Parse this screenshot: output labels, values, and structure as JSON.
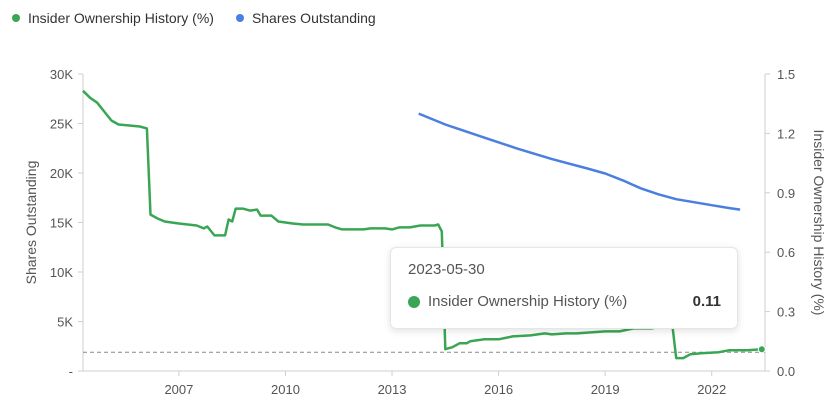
{
  "legend": [
    {
      "label": "Insider Ownership History (%)",
      "color": "#3aa655"
    },
    {
      "label": "Shares Outstanding",
      "color": "#4a7fe0"
    }
  ],
  "chart_data": {
    "type": "line",
    "left_axis": {
      "label": "Shares Outstanding",
      "ticks": [
        "-",
        "5K",
        "10K",
        "15K",
        "20K",
        "25K",
        "30K"
      ],
      "range": [
        0,
        30000
      ]
    },
    "right_axis": {
      "label": "Insider Ownership History (%)",
      "ticks": [
        "0.0",
        "0.3",
        "0.6",
        "0.9",
        "1.2",
        "1.5"
      ],
      "range": [
        0,
        1.5
      ]
    },
    "x_axis": {
      "ticks": [
        "2007",
        "2010",
        "2013",
        "2016",
        "2019",
        "2022"
      ],
      "range": [
        2004.3,
        2023.5
      ]
    },
    "reference_line": {
      "axis": "right",
      "value": 0.095
    },
    "series": [
      {
        "name": "Insider Ownership History (%)",
        "axis": "right",
        "color": "#3aa655",
        "points": [
          [
            2004.3,
            1.415
          ],
          [
            2004.5,
            1.38
          ],
          [
            2004.7,
            1.355
          ],
          [
            2004.9,
            1.31
          ],
          [
            2005.1,
            1.265
          ],
          [
            2005.3,
            1.245
          ],
          [
            2005.6,
            1.24
          ],
          [
            2005.9,
            1.235
          ],
          [
            2006.1,
            1.225
          ],
          [
            2006.2,
            0.79
          ],
          [
            2006.4,
            0.77
          ],
          [
            2006.6,
            0.755
          ],
          [
            2007.0,
            0.745
          ],
          [
            2007.5,
            0.735
          ],
          [
            2007.7,
            0.72
          ],
          [
            2007.8,
            0.73
          ],
          [
            2008.0,
            0.685
          ],
          [
            2008.3,
            0.685
          ],
          [
            2008.4,
            0.765
          ],
          [
            2008.5,
            0.755
          ],
          [
            2008.6,
            0.82
          ],
          [
            2008.8,
            0.82
          ],
          [
            2009.0,
            0.81
          ],
          [
            2009.2,
            0.815
          ],
          [
            2009.3,
            0.785
          ],
          [
            2009.6,
            0.785
          ],
          [
            2009.8,
            0.755
          ],
          [
            2010.2,
            0.745
          ],
          [
            2010.5,
            0.74
          ],
          [
            2011.2,
            0.74
          ],
          [
            2011.4,
            0.725
          ],
          [
            2011.6,
            0.715
          ],
          [
            2012.2,
            0.715
          ],
          [
            2012.4,
            0.72
          ],
          [
            2012.8,
            0.72
          ],
          [
            2013.0,
            0.715
          ],
          [
            2013.2,
            0.725
          ],
          [
            2013.5,
            0.725
          ],
          [
            2013.8,
            0.735
          ],
          [
            2014.2,
            0.735
          ],
          [
            2014.3,
            0.74
          ],
          [
            2014.4,
            0.705
          ],
          [
            2014.5,
            0.11
          ],
          [
            2014.7,
            0.12
          ],
          [
            2014.9,
            0.14
          ],
          [
            2015.1,
            0.14
          ],
          [
            2015.2,
            0.15
          ],
          [
            2015.6,
            0.16
          ],
          [
            2016.0,
            0.16
          ],
          [
            2016.4,
            0.175
          ],
          [
            2016.9,
            0.18
          ],
          [
            2017.3,
            0.19
          ],
          [
            2017.5,
            0.185
          ],
          [
            2017.9,
            0.19
          ],
          [
            2018.2,
            0.19
          ],
          [
            2018.6,
            0.195
          ],
          [
            2019.0,
            0.2
          ],
          [
            2019.4,
            0.2
          ],
          [
            2019.8,
            0.215
          ],
          [
            2020.3,
            0.215
          ],
          [
            2020.6,
            0.225
          ],
          [
            2020.9,
            0.22
          ],
          [
            2021.0,
            0.065
          ],
          [
            2021.2,
            0.065
          ],
          [
            2021.4,
            0.085
          ],
          [
            2021.7,
            0.09
          ],
          [
            2022.2,
            0.095
          ],
          [
            2022.5,
            0.105
          ],
          [
            2023.0,
            0.105
          ],
          [
            2023.41,
            0.11
          ]
        ]
      },
      {
        "name": "Shares Outstanding",
        "axis": "left",
        "color": "#4a7fe0",
        "points": [
          [
            2013.75,
            26000
          ],
          [
            2014.5,
            24900
          ],
          [
            2015.5,
            23700
          ],
          [
            2016.5,
            22500
          ],
          [
            2017.5,
            21400
          ],
          [
            2018.5,
            20450
          ],
          [
            2019.0,
            19950
          ],
          [
            2019.5,
            19250
          ],
          [
            2020.0,
            18450
          ],
          [
            2020.5,
            17850
          ],
          [
            2021.0,
            17350
          ],
          [
            2021.5,
            17050
          ],
          [
            2022.0,
            16750
          ],
          [
            2022.5,
            16450
          ],
          [
            2022.8,
            16300
          ]
        ]
      }
    ]
  },
  "tooltip": {
    "date": "2023-05-30",
    "series": "Insider Ownership History (%)",
    "value": "0.11",
    "color": "#3aa655"
  }
}
